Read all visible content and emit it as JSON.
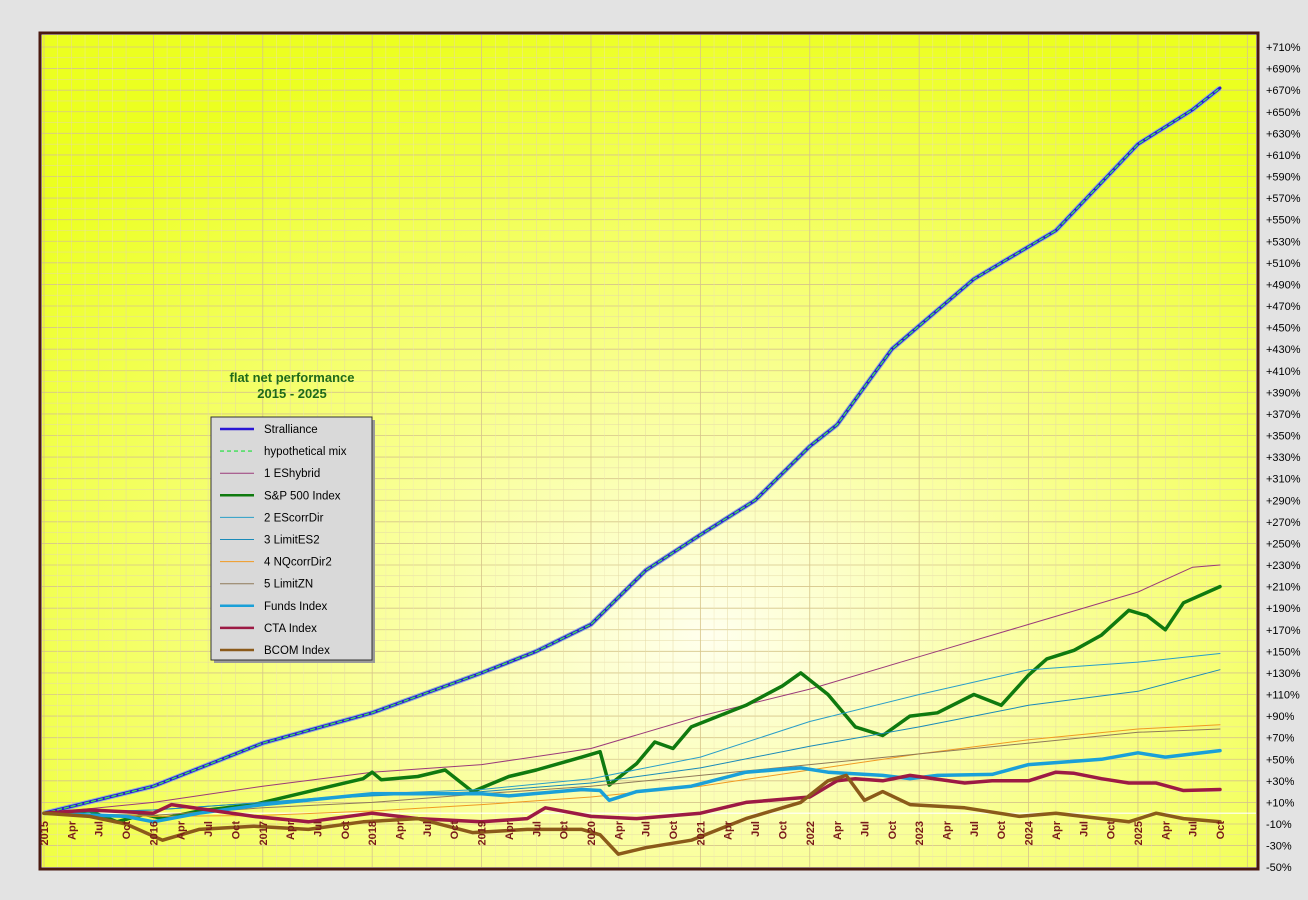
{
  "chart_data": {
    "type": "line",
    "title": "flat net performance",
    "subtitle": "2015 - 2025",
    "x_tick_labels": [
      "2015",
      "Apr",
      "Jul",
      "Oct",
      "2016",
      "Apr",
      "Jul",
      "Oct",
      "2017",
      "Apr",
      "Jul",
      "Oct",
      "2018",
      "Apr",
      "Jul",
      "Oct",
      "2019",
      "Apr",
      "Jul",
      "Oct",
      "2020",
      "Apr",
      "Jul",
      "Oct",
      "2021",
      "Apr",
      "Jul",
      "Oct",
      "2022",
      "Apr",
      "Jul",
      "Oct",
      "2023",
      "Apr",
      "Jul",
      "Oct",
      "2024",
      "Apr",
      "Jul",
      "Oct",
      "2025",
      "Apr",
      "Jul",
      "Oct"
    ],
    "x_range": [
      "2015-01",
      "2025-10"
    ],
    "y_tick_labels": [
      "+710%",
      "+690%",
      "+670%",
      "+650%",
      "+630%",
      "+610%",
      "+590%",
      "+570%",
      "+550%",
      "+530%",
      "+510%",
      "+490%",
      "+470%",
      "+450%",
      "+430%",
      "+410%",
      "+390%",
      "+370%",
      "+350%",
      "+330%",
      "+310%",
      "+290%",
      "+270%",
      "+250%",
      "+230%",
      "+210%",
      "+190%",
      "+170%",
      "+150%",
      "+130%",
      "+110%",
      "+90%",
      "+70%",
      "+50%",
      "+30%",
      "+10%",
      "-10%",
      "-30%",
      "-50%"
    ],
    "ylim": [
      -50,
      710
    ],
    "y_unit": "%",
    "grid": true,
    "legend_position": "left",
    "series": [
      {
        "name": "Stralliance",
        "color": "#2a16d4",
        "width": 3,
        "dash": "",
        "points": [
          [
            "2015-01",
            0
          ],
          [
            "2016-01",
            25
          ],
          [
            "2017-01",
            65
          ],
          [
            "2018-01",
            93
          ],
          [
            "2019-01",
            130
          ],
          [
            "2019-07",
            150
          ],
          [
            "2020-01",
            175
          ],
          [
            "2020-07",
            225
          ],
          [
            "2021-01",
            258
          ],
          [
            "2021-07",
            290
          ],
          [
            "2022-01",
            340
          ],
          [
            "2022-04",
            360
          ],
          [
            "2022-10",
            430
          ],
          [
            "2023-07",
            495
          ],
          [
            "2024-04",
            540
          ],
          [
            "2025-01",
            620
          ],
          [
            "2025-07",
            652
          ],
          [
            "2025-10",
            672
          ]
        ]
      },
      {
        "name": "hypothetical  mix",
        "color": "#3ce054",
        "width": 1.4,
        "dash": "4,3",
        "points": [
          [
            "2015-01",
            0
          ],
          [
            "2016-01",
            25
          ],
          [
            "2017-01",
            65
          ],
          [
            "2018-01",
            93
          ],
          [
            "2019-01",
            130
          ],
          [
            "2019-07",
            150
          ],
          [
            "2020-01",
            175
          ],
          [
            "2020-07",
            225
          ],
          [
            "2021-01",
            258
          ],
          [
            "2021-07",
            290
          ],
          [
            "2022-01",
            340
          ],
          [
            "2022-04",
            360
          ],
          [
            "2022-10",
            430
          ],
          [
            "2023-07",
            495
          ],
          [
            "2024-04",
            540
          ],
          [
            "2025-01",
            620
          ],
          [
            "2025-07",
            652
          ],
          [
            "2025-10",
            672
          ]
        ]
      },
      {
        "name": "1 EShybrid",
        "color": "#9b3a7a",
        "width": 1,
        "dash": "",
        "points": [
          [
            "2015-01",
            0
          ],
          [
            "2016-01",
            10
          ],
          [
            "2017-01",
            25
          ],
          [
            "2018-01",
            38
          ],
          [
            "2019-01",
            45
          ],
          [
            "2020-01",
            60
          ],
          [
            "2021-01",
            90
          ],
          [
            "2022-01",
            115
          ],
          [
            "2023-01",
            145
          ],
          [
            "2024-01",
            175
          ],
          [
            "2025-01",
            205
          ],
          [
            "2025-07",
            228
          ],
          [
            "2025-10",
            230
          ]
        ]
      },
      {
        "name": "S&P 500 Index",
        "color": "#0f7a0f",
        "width": 3.5,
        "dash": "",
        "points": [
          [
            "2015-01",
            0
          ],
          [
            "2015-06",
            2
          ],
          [
            "2015-09",
            -8
          ],
          [
            "2015-12",
            -1
          ],
          [
            "2016-02",
            -5
          ],
          [
            "2016-06",
            2
          ],
          [
            "2016-12",
            8
          ],
          [
            "2017-06",
            20
          ],
          [
            "2017-12",
            32
          ],
          [
            "2018-01",
            38
          ],
          [
            "2018-02",
            31
          ],
          [
            "2018-06",
            34
          ],
          [
            "2018-09",
            40
          ],
          [
            "2018-12",
            20
          ],
          [
            "2019-04",
            34
          ],
          [
            "2019-07",
            40
          ],
          [
            "2019-12",
            52
          ],
          [
            "2020-02",
            57
          ],
          [
            "2020-03",
            26
          ],
          [
            "2020-06",
            46
          ],
          [
            "2020-08",
            66
          ],
          [
            "2020-10",
            60
          ],
          [
            "2020-12",
            80
          ],
          [
            "2021-06",
            100
          ],
          [
            "2021-10",
            118
          ],
          [
            "2021-12",
            130
          ],
          [
            "2022-03",
            110
          ],
          [
            "2022-06",
            80
          ],
          [
            "2022-09",
            72
          ],
          [
            "2022-12",
            90
          ],
          [
            "2023-03",
            93
          ],
          [
            "2023-07",
            110
          ],
          [
            "2023-10",
            100
          ],
          [
            "2024-01",
            128
          ],
          [
            "2024-03",
            143
          ],
          [
            "2024-06",
            151
          ],
          [
            "2024-09",
            165
          ],
          [
            "2024-12",
            188
          ],
          [
            "2025-02",
            183
          ],
          [
            "2025-04",
            170
          ],
          [
            "2025-06",
            195
          ],
          [
            "2025-10",
            210
          ]
        ]
      },
      {
        "name": "2 EScorrDir",
        "color": "#2a9ec8",
        "width": 1,
        "dash": "",
        "points": [
          [
            "2015-01",
            0
          ],
          [
            "2016-01",
            3
          ],
          [
            "2017-01",
            10
          ],
          [
            "2018-01",
            18
          ],
          [
            "2019-01",
            22
          ],
          [
            "2020-01",
            32
          ],
          [
            "2021-01",
            52
          ],
          [
            "2022-01",
            85
          ],
          [
            "2023-01",
            110
          ],
          [
            "2024-01",
            133
          ],
          [
            "2025-01",
            140
          ],
          [
            "2025-10",
            148
          ]
        ]
      },
      {
        "name": "3 LimitES2",
        "color": "#1a8ab8",
        "width": 1,
        "dash": "",
        "points": [
          [
            "2015-01",
            0
          ],
          [
            "2016-01",
            3
          ],
          [
            "2017-01",
            10
          ],
          [
            "2018-01",
            16
          ],
          [
            "2019-01",
            20
          ],
          [
            "2020-01",
            28
          ],
          [
            "2021-01",
            42
          ],
          [
            "2022-01",
            62
          ],
          [
            "2023-01",
            80
          ],
          [
            "2024-01",
            100
          ],
          [
            "2025-01",
            113
          ],
          [
            "2025-10",
            133
          ]
        ]
      },
      {
        "name": "4 NQcorrDir2",
        "color": "#f09a22",
        "width": 1,
        "dash": "",
        "points": [
          [
            "2015-01",
            0
          ],
          [
            "2016-01",
            -3
          ],
          [
            "2017-01",
            -2
          ],
          [
            "2018-01",
            2
          ],
          [
            "2019-01",
            8
          ],
          [
            "2020-01",
            15
          ],
          [
            "2021-01",
            25
          ],
          [
            "2022-01",
            40
          ],
          [
            "2023-01",
            55
          ],
          [
            "2024-01",
            68
          ],
          [
            "2025-01",
            78
          ],
          [
            "2025-10",
            82
          ]
        ]
      },
      {
        "name": "5 LimitZN",
        "color": "#8f7a5a",
        "width": 1,
        "dash": "",
        "points": [
          [
            "2015-01",
            0
          ],
          [
            "2016-01",
            -2
          ],
          [
            "2017-01",
            5
          ],
          [
            "2018-01",
            10
          ],
          [
            "2019-01",
            18
          ],
          [
            "2020-01",
            25
          ],
          [
            "2021-01",
            35
          ],
          [
            "2022-01",
            45
          ],
          [
            "2023-01",
            55
          ],
          [
            "2024-01",
            65
          ],
          [
            "2025-01",
            75
          ],
          [
            "2025-10",
            78
          ]
        ]
      },
      {
        "name": "Funds Index",
        "color": "#1aa0d8",
        "width": 3.5,
        "dash": "",
        "points": [
          [
            "2015-01",
            0
          ],
          [
            "2015-10",
            -3
          ],
          [
            "2016-01",
            -8
          ],
          [
            "2016-06",
            0
          ],
          [
            "2017-01",
            8
          ],
          [
            "2018-01",
            18
          ],
          [
            "2019-01",
            18
          ],
          [
            "2019-04",
            16
          ],
          [
            "2019-12",
            22
          ],
          [
            "2020-02",
            21
          ],
          [
            "2020-03",
            12
          ],
          [
            "2020-06",
            20
          ],
          [
            "2020-12",
            25
          ],
          [
            "2021-06",
            38
          ],
          [
            "2021-12",
            42
          ],
          [
            "2022-03",
            38
          ],
          [
            "2022-09",
            35
          ],
          [
            "2022-12",
            32
          ],
          [
            "2023-03",
            35
          ],
          [
            "2023-09",
            36
          ],
          [
            "2024-01",
            45
          ],
          [
            "2024-09",
            50
          ],
          [
            "2025-01",
            56
          ],
          [
            "2025-04",
            52
          ],
          [
            "2025-10",
            58
          ]
        ]
      },
      {
        "name": "CTA Index",
        "color": "#9c1a44",
        "width": 3.5,
        "dash": "",
        "points": [
          [
            "2015-01",
            0
          ],
          [
            "2015-06",
            3
          ],
          [
            "2016-01",
            0
          ],
          [
            "2016-03",
            8
          ],
          [
            "2016-12",
            -3
          ],
          [
            "2017-06",
            -8
          ],
          [
            "2018-01",
            0
          ],
          [
            "2018-06",
            -5
          ],
          [
            "2019-01",
            -8
          ],
          [
            "2019-06",
            -5
          ],
          [
            "2019-08",
            5
          ],
          [
            "2020-01",
            -3
          ],
          [
            "2020-06",
            -5
          ],
          [
            "2021-01",
            0
          ],
          [
            "2021-06",
            10
          ],
          [
            "2022-01",
            15
          ],
          [
            "2022-04",
            30
          ],
          [
            "2022-06",
            32
          ],
          [
            "2022-09",
            30
          ],
          [
            "2022-12",
            35
          ],
          [
            "2023-06",
            28
          ],
          [
            "2023-09",
            30
          ],
          [
            "2024-01",
            30
          ],
          [
            "2024-04",
            38
          ],
          [
            "2024-06",
            37
          ],
          [
            "2024-09",
            32
          ],
          [
            "2024-12",
            28
          ],
          [
            "2025-03",
            28
          ],
          [
            "2025-06",
            21
          ],
          [
            "2025-10",
            22
          ]
        ]
      },
      {
        "name": "BCOM Index",
        "color": "#8b5a1a",
        "width": 3.5,
        "dash": "",
        "points": [
          [
            "2015-01",
            0
          ],
          [
            "2015-06",
            -3
          ],
          [
            "2015-10",
            -10
          ],
          [
            "2016-02",
            -25
          ],
          [
            "2016-06",
            -15
          ],
          [
            "2016-12",
            -12
          ],
          [
            "2017-06",
            -15
          ],
          [
            "2017-12",
            -8
          ],
          [
            "2018-06",
            -5
          ],
          [
            "2018-12",
            -18
          ],
          [
            "2019-06",
            -15
          ],
          [
            "2019-12",
            -15
          ],
          [
            "2020-02",
            -20
          ],
          [
            "2020-04",
            -38
          ],
          [
            "2020-07",
            -32
          ],
          [
            "2020-12",
            -25
          ],
          [
            "2021-06",
            -5
          ],
          [
            "2021-12",
            10
          ],
          [
            "2022-03",
            30
          ],
          [
            "2022-05",
            35
          ],
          [
            "2022-07",
            12
          ],
          [
            "2022-09",
            20
          ],
          [
            "2022-12",
            8
          ],
          [
            "2023-06",
            5
          ],
          [
            "2023-12",
            -3
          ],
          [
            "2024-04",
            0
          ],
          [
            "2024-09",
            -5
          ],
          [
            "2024-12",
            -8
          ],
          [
            "2025-03",
            0
          ],
          [
            "2025-06",
            -5
          ],
          [
            "2025-10",
            -8
          ]
        ]
      }
    ]
  }
}
